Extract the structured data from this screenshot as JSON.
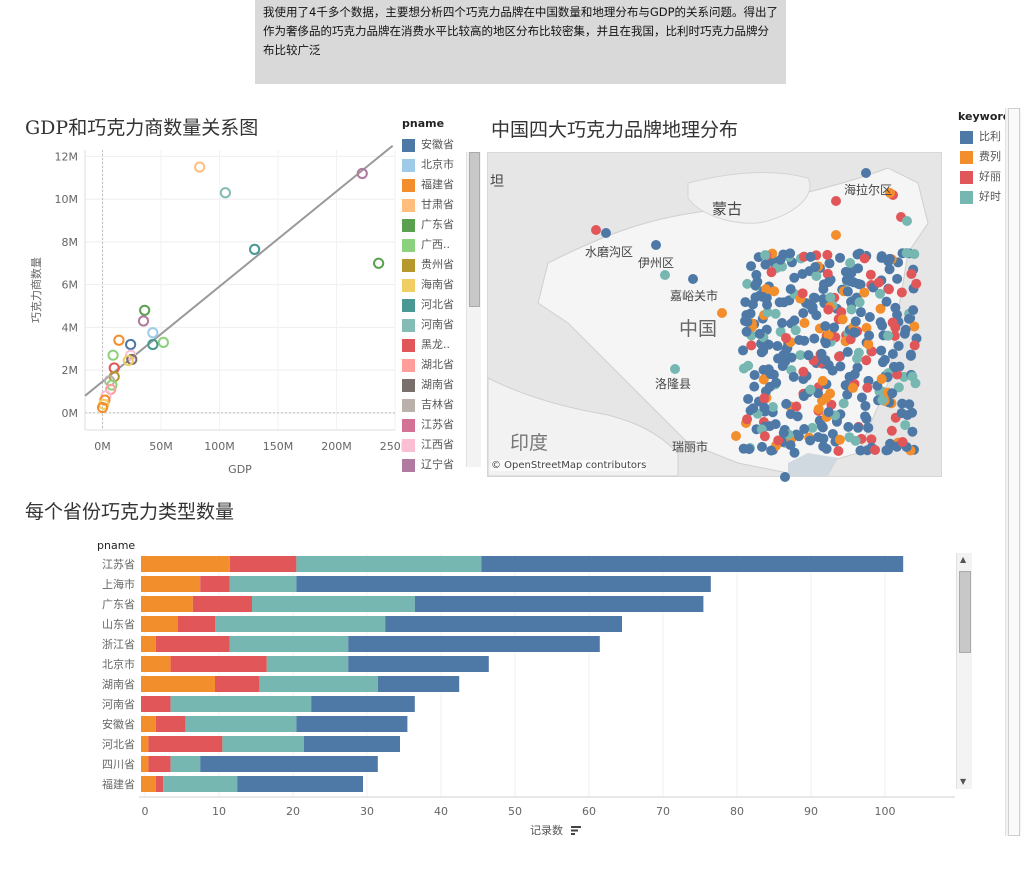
{
  "description": "我使用了4千多个数据，主要想分析四个巧克力品牌在中国数量和地理分布与GDP的关系问题。得出了作为奢侈品的巧克力品牌在消费水平比较高的地区分布比较密集，并且在我国，比利时巧克力品牌分布比较广泛",
  "colors": {
    "orange": "#f28e2b",
    "red": "#e15759",
    "teal": "#76b7b2",
    "blue": "#4e79a7"
  },
  "scatter": {
    "title": "GDP和巧克力商数量关系图",
    "legend_title": "pname",
    "legend": [
      {
        "label": "安徽省",
        "color": "#4e79a7"
      },
      {
        "label": "北京市",
        "color": "#a0cbe8"
      },
      {
        "label": "福建省",
        "color": "#f28e2b"
      },
      {
        "label": "甘肃省",
        "color": "#ffbe7d"
      },
      {
        "label": "广东省",
        "color": "#59a14f"
      },
      {
        "label": "广西..",
        "color": "#8cd17d"
      },
      {
        "label": "贵州省",
        "color": "#b6992d"
      },
      {
        "label": "海南省",
        "color": "#f1ce63"
      },
      {
        "label": "河北省",
        "color": "#499894"
      },
      {
        "label": "河南省",
        "color": "#86bcb6"
      },
      {
        "label": "黑龙..",
        "color": "#e15759"
      },
      {
        "label": "湖北省",
        "color": "#ff9d9a"
      },
      {
        "label": "湖南省",
        "color": "#79706e"
      },
      {
        "label": "吉林省",
        "color": "#bab0ac"
      },
      {
        "label": "江苏省",
        "color": "#d37295"
      },
      {
        "label": "江西省",
        "color": "#fabfd2"
      },
      {
        "label": "辽宁省",
        "color": "#b07aa1"
      }
    ]
  },
  "map": {
    "title": "中国四大巧克力品牌地理分布",
    "legend_title": "keyword",
    "legend": [
      {
        "label": "比利",
        "color": "#4e79a7"
      },
      {
        "label": "费列",
        "color": "#f28e2b"
      },
      {
        "label": "好丽",
        "color": "#e15759"
      },
      {
        "label": "好时",
        "color": "#76b7b2"
      }
    ],
    "labels": {
      "tan": "坦",
      "mongolia": "蒙古",
      "hailar": "海拉尔区",
      "shuimogou": "水磨沟区",
      "yizhou": "伊州区",
      "jiayuguan": "嘉峪关市",
      "china": "中国",
      "luolong": "洛隆县",
      "india": "印度",
      "ruili": "瑞丽市"
    },
    "attribution": "© OpenStreetMap contributors"
  },
  "bar": {
    "title": "每个省份巧克力类型数量",
    "row_header": "pname",
    "xlabel": "记录数",
    "sort_icon": "sort-descending-icon"
  },
  "chart_data": [
    {
      "type": "scatter",
      "title": "GDP和巧克力商数量关系图",
      "xlabel": "GDP",
      "ylabel": "巧克力商数量",
      "x_ticks": [
        "0M",
        "50M",
        "100M",
        "150M",
        "200M",
        "250M"
      ],
      "y_ticks": [
        "0M",
        "2M",
        "4M",
        "6M",
        "8M",
        "10M",
        "12M"
      ],
      "xlim": [
        -15,
        250
      ],
      "ylim": [
        -0.8,
        12.3
      ],
      "trend_line": [
        [
          -15,
          0.8
        ],
        [
          248,
          12.5
        ]
      ],
      "points": [
        {
          "x": 83,
          "y": 11.5,
          "color": "#ffbe7d"
        },
        {
          "x": 105,
          "y": 10.3,
          "color": "#86bcb6"
        },
        {
          "x": 222,
          "y": 11.2,
          "color": "#b07aa1"
        },
        {
          "x": 130,
          "y": 7.65,
          "color": "#499894"
        },
        {
          "x": 236,
          "y": 7.0,
          "color": "#59a14f"
        },
        {
          "x": 36,
          "y": 4.8,
          "color": "#59a14f"
        },
        {
          "x": 35,
          "y": 4.3,
          "color": "#b07aa1"
        },
        {
          "x": 43,
          "y": 3.75,
          "color": "#a0cbe8"
        },
        {
          "x": 52,
          "y": 3.3,
          "color": "#8cd17d"
        },
        {
          "x": 43,
          "y": 3.2,
          "color": "#499894"
        },
        {
          "x": 14,
          "y": 3.4,
          "color": "#f28e2b"
        },
        {
          "x": 24,
          "y": 3.2,
          "color": "#4e79a7"
        },
        {
          "x": 24,
          "y": 2.7,
          "color": "#fabfd2"
        },
        {
          "x": 9,
          "y": 2.7,
          "color": "#8cd17d"
        },
        {
          "x": 25,
          "y": 2.5,
          "color": "#79706e"
        },
        {
          "x": 22,
          "y": 2.45,
          "color": "#f1ce63"
        },
        {
          "x": 10,
          "y": 2.1,
          "color": "#e15759"
        },
        {
          "x": 10,
          "y": 1.7,
          "color": "#b6992d"
        },
        {
          "x": 6,
          "y": 1.5,
          "color": "#bab0ac"
        },
        {
          "x": 8,
          "y": 1.3,
          "color": "#8cd17d"
        },
        {
          "x": 7,
          "y": 1.1,
          "color": "#ff9d9a"
        },
        {
          "x": 3,
          "y": 0.8,
          "color": "#fabfd2"
        },
        {
          "x": 2,
          "y": 0.6,
          "color": "#f28e2b"
        },
        {
          "x": 1,
          "y": 0.4,
          "color": "#f1ce63"
        },
        {
          "x": 0,
          "y": 0.25,
          "color": "#f28e2b"
        }
      ]
    },
    {
      "type": "bar",
      "orientation": "horizontal",
      "stacked": true,
      "title": "每个省份巧克力类型数量",
      "xlabel": "记录数",
      "xlim": [
        0,
        110
      ],
      "x_ticks": [
        0,
        10,
        20,
        30,
        40,
        50,
        60,
        70,
        80,
        90,
        100
      ],
      "categories": [
        "江苏省",
        "上海市",
        "广东省",
        "山东省",
        "浙江省",
        "北京市",
        "湖南省",
        "河南省",
        "安徽省",
        "河北省",
        "四川省",
        "福建省"
      ],
      "series": [
        {
          "color": "#f28e2b",
          "values": [
            12,
            8,
            7,
            5,
            2,
            4,
            10,
            0,
            2,
            1,
            1,
            2
          ]
        },
        {
          "color": "#e15759",
          "values": [
            9,
            4,
            8,
            5,
            10,
            13,
            6,
            4,
            4,
            10,
            3,
            1
          ]
        },
        {
          "color": "#76b7b2",
          "values": [
            25,
            9,
            22,
            23,
            16,
            11,
            16,
            19,
            15,
            11,
            4,
            10
          ]
        },
        {
          "color": "#4e79a7",
          "values": [
            57,
            56,
            39,
            32,
            34,
            19,
            11,
            14,
            15,
            13,
            24,
            17
          ]
        }
      ]
    }
  ]
}
